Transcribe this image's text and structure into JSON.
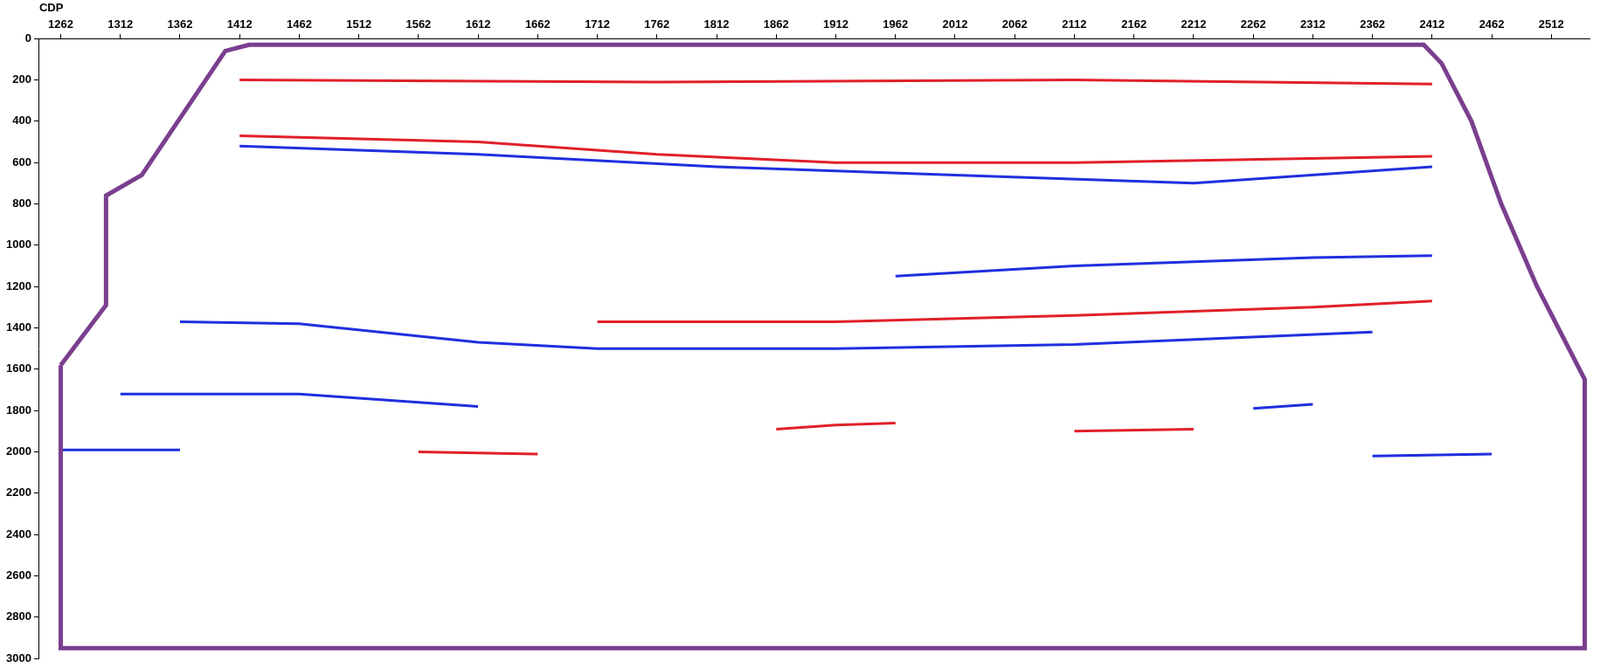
{
  "chart_data": {
    "type": "line",
    "xlabel": "CDP",
    "xlim": [
      1244,
      2544
    ],
    "xticks": [
      1262,
      1312,
      1362,
      1412,
      1462,
      1512,
      1562,
      1612,
      1662,
      1712,
      1762,
      1812,
      1862,
      1912,
      1962,
      2012,
      2062,
      2112,
      2162,
      2212,
      2262,
      2312,
      2362,
      2412,
      2462,
      2512
    ],
    "ylim": [
      0,
      3000
    ],
    "yticks": [
      0,
      200,
      400,
      600,
      800,
      1000,
      1200,
      1400,
      1600,
      1800,
      2000,
      2200,
      2400,
      2600,
      2800,
      3000
    ],
    "grid": false,
    "series": [
      {
        "color": "#7a3f8f",
        "line_style": "solid",
        "x": [
          1262,
          1300,
          1300,
          1330,
          1400,
          1420,
          2405,
          2420,
          2445,
          2470,
          2500,
          2540,
          2540,
          1262,
          1262
        ],
        "values": [
          1580,
          1290,
          760,
          660,
          60,
          30,
          30,
          120,
          400,
          800,
          1200,
          1650,
          2950,
          2950,
          1580
        ]
      },
      {
        "color": "#e0202a",
        "line_style": "solid",
        "x": [
          1412,
          1762,
          2112,
          2412
        ],
        "values": [
          200,
          210,
          200,
          220
        ]
      },
      {
        "color": "#e0202a",
        "line_style": "solid",
        "x": [
          1412,
          1612,
          1762,
          1912,
          2112,
          2412
        ],
        "values": [
          470,
          500,
          560,
          600,
          600,
          570
        ]
      },
      {
        "color": "#1f2fe0",
        "line_style": "solid",
        "x": [
          1412,
          1612,
          1812,
          2012,
          2212,
          2412
        ],
        "values": [
          520,
          560,
          620,
          660,
          700,
          620
        ]
      },
      {
        "color": "#1f2fe0",
        "line_style": "solid",
        "x": [
          1962,
          2112,
          2312,
          2412
        ],
        "values": [
          1150,
          1100,
          1060,
          1050
        ]
      },
      {
        "color": "#e0202a",
        "line_style": "solid",
        "x": [
          1712,
          1912,
          2112,
          2312,
          2412
        ],
        "values": [
          1370,
          1370,
          1340,
          1300,
          1270
        ]
      },
      {
        "color": "#1f2fe0",
        "line_style": "solid",
        "x": [
          1362,
          1462,
          1612,
          1712,
          1912,
          2112,
          2362
        ],
        "values": [
          1370,
          1380,
          1470,
          1500,
          1500,
          1480,
          1420
        ]
      },
      {
        "color": "#1f2fe0",
        "line_style": "solid",
        "x": [
          1312,
          1462,
          1562,
          1612
        ],
        "values": [
          1720,
          1720,
          1760,
          1780
        ]
      },
      {
        "color": "#e0202a",
        "line_style": "solid",
        "x": [
          1862,
          1912,
          1962
        ],
        "values": [
          1890,
          1870,
          1860
        ]
      },
      {
        "color": "#e0202a",
        "line_style": "solid",
        "x": [
          2112,
          2212
        ],
        "values": [
          1900,
          1890
        ]
      },
      {
        "color": "#1f2fe0",
        "line_style": "solid",
        "x": [
          2262,
          2312
        ],
        "values": [
          1790,
          1770
        ]
      },
      {
        "color": "#1f2fe0",
        "line_style": "solid",
        "x": [
          1262,
          1362
        ],
        "values": [
          1990,
          1990
        ]
      },
      {
        "color": "#e0202a",
        "line_style": "solid",
        "x": [
          1562,
          1662
        ],
        "values": [
          2000,
          2010
        ]
      },
      {
        "color": "#1f2fe0",
        "line_style": "solid",
        "x": [
          2362,
          2462
        ],
        "values": [
          2020,
          2010
        ]
      }
    ]
  }
}
